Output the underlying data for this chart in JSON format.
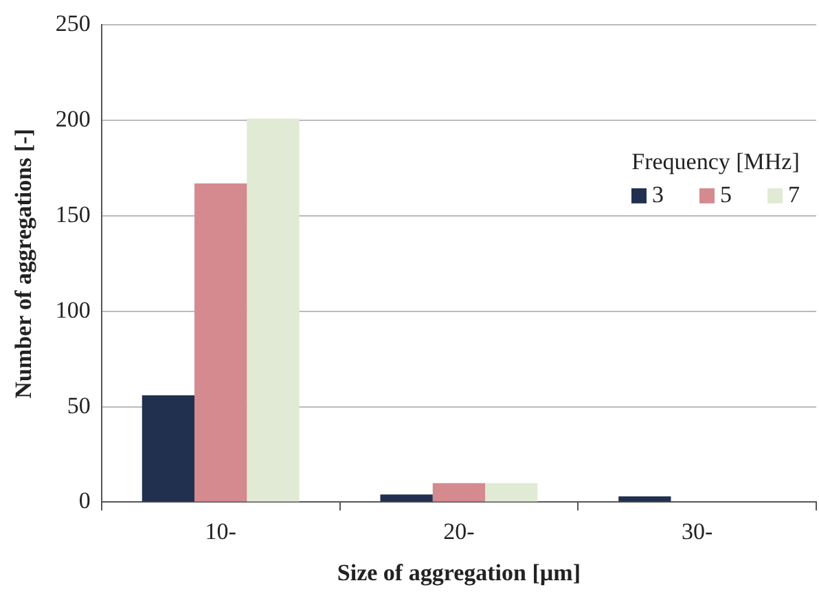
{
  "chart_data": {
    "type": "bar",
    "xlabel": "Size of aggregation [µm]",
    "ylabel": "Number of aggregations [-]",
    "legend_title": "Frequency [MHz]",
    "categories": [
      "10-",
      "20-",
      "30-"
    ],
    "series": [
      {
        "name": "3",
        "color": "#22304f",
        "values": [
          56,
          4,
          3
        ]
      },
      {
        "name": "5",
        "color": "#d48a8f",
        "values": [
          167,
          10,
          0
        ]
      },
      {
        "name": "7",
        "color": "#e1ead4",
        "values": [
          201,
          10,
          0
        ]
      }
    ],
    "ylim": [
      0,
      250
    ],
    "yticks": [
      0,
      50,
      100,
      150,
      200,
      250
    ],
    "grid": "y",
    "legend": "top right"
  }
}
